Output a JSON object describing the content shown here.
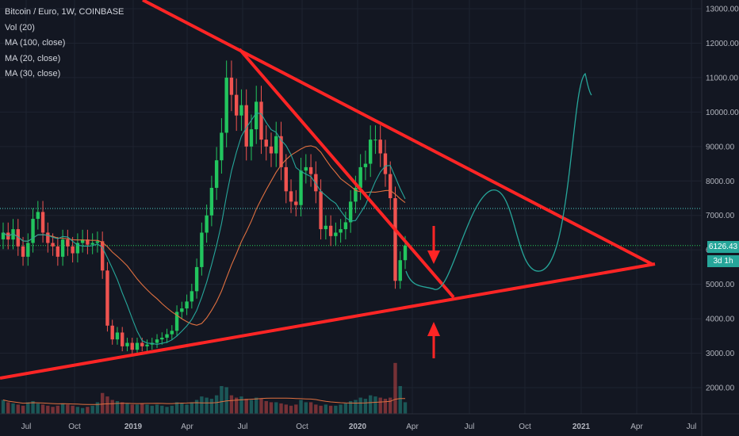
{
  "legend": {
    "title": "Bitcoin / Euro, 1W, COINBASE",
    "vol": "Vol (20)",
    "ma100": "MA (100, close)",
    "ma20": "MA (20, close)",
    "ma30": "MA (30, close)"
  },
  "price_tag": "6126.43",
  "countdown_tag": "3d 1h",
  "colors": {
    "background": "#131722",
    "up": "#26a69a",
    "up_bright": "#22c55e",
    "down": "#ef5350",
    "trendline": "#ff2525",
    "ma_teal": "#26a69a",
    "ma_orange": "#e07040",
    "dotted_teal": "#4dd0c8",
    "dotted_green": "#2bd157",
    "arrow": "#ff2525"
  },
  "chart_data": {
    "type": "candlestick",
    "symbol": "Bitcoin / Euro",
    "interval": "1W",
    "exchange": "COINBASE",
    "x_axis_labels": [
      "Jul",
      "Oct",
      "2019",
      "Apr",
      "Jul",
      "Oct",
      "2020",
      "Apr",
      "Jul",
      "Oct",
      "2021",
      "Apr",
      "Jul"
    ],
    "y_axis_labels": [
      "13000.00",
      "12000.00",
      "11000.00",
      "10000.00",
      "9000.00",
      "8000.00",
      "7000.00",
      "6000.00",
      "5000.00",
      "4000.00",
      "3000.00",
      "2000.00"
    ],
    "ylim": [
      1650,
      13200
    ],
    "price_levels": [
      {
        "price": 7200,
        "style": "dotted",
        "color": "teal"
      },
      {
        "price": 6126.43,
        "style": "dotted",
        "color": "green"
      }
    ],
    "current_price": 6126.43,
    "weekly_closes_approx": [
      6500,
      6300,
      6600,
      6100,
      5800,
      6200,
      6900,
      7100,
      6500,
      6200,
      6100,
      5800,
      6300,
      6100,
      5900,
      6200,
      6300,
      6150,
      6200,
      6250,
      5400,
      3800,
      3400,
      3600,
      3200,
      3300,
      3100,
      3300,
      3200,
      3250,
      3300,
      3400,
      3450,
      3550,
      3650,
      4200,
      4300,
      4500,
      4800,
      5500,
      6500,
      7000,
      7800,
      8600,
      9400,
      11000,
      10500,
      9900,
      10200,
      9000,
      9500,
      10300,
      9200,
      9000,
      8800,
      9300,
      8400,
      7700,
      7400,
      7300,
      8300,
      8400,
      8200,
      7700,
      6600,
      6700,
      6400,
      6500,
      6600,
      6800,
      7400,
      7800,
      8400,
      8500,
      9200,
      9200,
      8800,
      8200,
      7500,
      5100,
      5700,
      6126
    ],
    "weekly_volume_approx": [
      2400,
      2300,
      2250,
      2200,
      2150,
      2300,
      2350,
      2250,
      2200,
      2150,
      2100,
      2150,
      2250,
      2200,
      2150,
      2100,
      2050,
      2100,
      2150,
      2300,
      2700,
      2550,
      2400,
      2350,
      2300,
      2250,
      2200,
      2200,
      2250,
      2200,
      2150,
      2200,
      2150,
      2100,
      2150,
      2300,
      2250,
      2200,
      2300,
      2400,
      2550,
      2500,
      2450,
      2600,
      3000,
      2950,
      2600,
      2500,
      2550,
      2450,
      2400,
      2500,
      2450,
      2350,
      2300,
      2300,
      2250,
      2200,
      2150,
      2200,
      2400,
      2300,
      2300,
      2200,
      2150,
      2200,
      2150,
      2150,
      2200,
      2250,
      2350,
      2400,
      2500,
      2450,
      2600,
      2550,
      2500,
      2450,
      2500,
      4000,
      3000,
      2300
    ]
  }
}
